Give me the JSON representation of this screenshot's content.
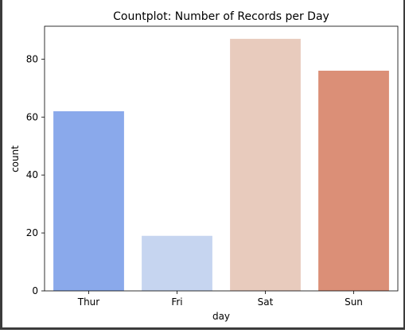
{
  "chart_data": {
    "type": "bar",
    "title": "Countplot: Number of Records per Day",
    "xlabel": "day",
    "ylabel": "count",
    "categories": [
      "Thur",
      "Fri",
      "Sat",
      "Sun"
    ],
    "values": [
      62,
      19,
      87,
      76
    ],
    "colors": [
      "#8aa9eb",
      "#c6d5f0",
      "#e8cbbd",
      "#db8f77"
    ],
    "ylim": [
      0,
      91.35
    ],
    "yticks": [
      0,
      20,
      40,
      60,
      80
    ],
    "ytick_labels": [
      "0",
      "20",
      "40",
      "60",
      "80"
    ],
    "grid": false,
    "legend": "none"
  }
}
